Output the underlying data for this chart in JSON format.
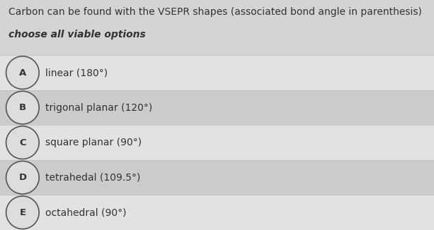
{
  "title_line1": "Carbon can be found with the VSEPR shapes (associated bond angle in parenthesis)",
  "title_line2": "choose all viable options",
  "options": [
    {
      "letter": "A",
      "text": "linear (180°)"
    },
    {
      "letter": "B",
      "text": "trigonal planar (120°)"
    },
    {
      "letter": "C",
      "text": "square planar (90°)"
    },
    {
      "letter": "D",
      "text": "tetrahedal (109.5°)"
    },
    {
      "letter": "E",
      "text": "octahedral (90°)"
    }
  ],
  "bg_color": "#d4d4d4",
  "row_colors": [
    "#e2e2e2",
    "#cbcbcb",
    "#e2e2e2",
    "#cbcbcb",
    "#e2e2e2"
  ],
  "circle_edge_color": "#555555",
  "circle_face_color": "#dddddd",
  "text_color": "#333333",
  "title_fontsize": 10.0,
  "subtitle_fontsize": 10.0,
  "option_fontsize": 10.0,
  "letter_fontsize": 9.5
}
